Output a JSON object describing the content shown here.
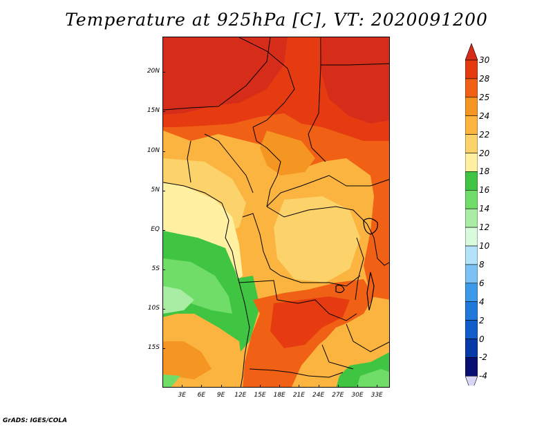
{
  "title": "Temperature at 925hPa [C], VT: 2020091200",
  "footer": "GrADS: IGES/COLA",
  "map": {
    "lon_range": [
      0,
      35
    ],
    "lat_range": [
      -20,
      24.5
    ],
    "lat_labels": [
      "20N",
      "15N",
      "10N",
      "5N",
      "EQ",
      "5S",
      "10S",
      "15S"
    ],
    "lat_values": [
      20,
      15,
      10,
      5,
      0,
      -5,
      -10,
      -15
    ],
    "lon_labels": [
      "3E",
      "6E",
      "9E",
      "12E",
      "15E",
      "18E",
      "21E",
      "24E",
      "27E",
      "30E",
      "33E"
    ],
    "lon_values": [
      3,
      6,
      9,
      12,
      15,
      18,
      21,
      24,
      27,
      30,
      33
    ]
  },
  "colorbar": {
    "labels": [
      "30",
      "28",
      "25",
      "24",
      "22",
      "20",
      "18",
      "16",
      "14",
      "12",
      "10",
      "8",
      "6",
      "4",
      "2",
      "0",
      "-2",
      "-4"
    ],
    "colors": {
      "above_30": "#d62d1a",
      "28_30": "#e63b11",
      "25_28": "#f06115",
      "24_25": "#f59622",
      "22_24": "#fbb43f",
      "20_22": "#fbd36a",
      "18_20": "#fff0a2",
      "16_18": "#3fc541",
      "14_16": "#6fdd68",
      "12_14": "#a9eca3",
      "10_12": "#dafade",
      "8_10": "#b2e3fb",
      "6_8": "#7ac2f3",
      "4_6": "#3c9ae8",
      "2_4": "#2078da",
      "0_2": "#105cc8",
      "-2_0": "#063aa6",
      "-4_-2": "#071070",
      "below_-4": "#d8d6f6"
    }
  }
}
